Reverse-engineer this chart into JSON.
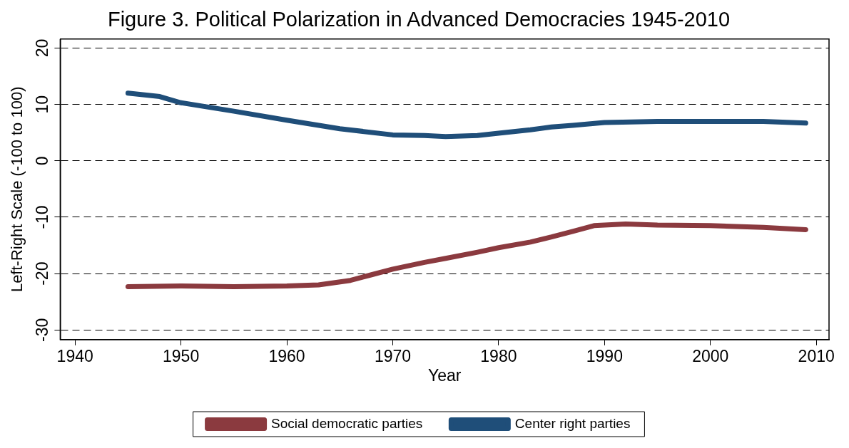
{
  "chart_data": {
    "type": "line",
    "title": "Figure 3. Political Polarization in Advanced Democracies 1945-2010",
    "xlabel": "Year",
    "ylabel": "Left-Right Scale (-100 to 100)",
    "xlim": [
      1938.6,
      2011.2
    ],
    "xticks": [
      1940,
      1950,
      1960,
      1970,
      1980,
      1990,
      2000,
      2010
    ],
    "ylim": [
      -31.7,
      21.6
    ],
    "yticks": [
      -30,
      -20,
      -10,
      0,
      10,
      20
    ],
    "grid": "y",
    "legend": "bottom",
    "marker": "none",
    "line_style": "solid",
    "series": [
      {
        "name": "Social democratic parties",
        "color": "#8b3a3f",
        "x": [
          1945,
          1950,
          1955,
          1960,
          1963,
          1966,
          1968,
          1970,
          1973,
          1975,
          1978,
          1980,
          1983,
          1985,
          1987,
          1989,
          1992,
          1995,
          2000,
          2005,
          2009
        ],
        "values": [
          -22.3,
          -22.2,
          -22.3,
          -22.2,
          -22,
          -21.2,
          -20.2,
          -19.2,
          -18,
          -17.3,
          -16.2,
          -15.4,
          -14.4,
          -13.5,
          -12.5,
          -11.5,
          -11.2,
          -11.4,
          -11.5,
          -11.8,
          -12.2
        ]
      },
      {
        "name": "Center right parties",
        "color": "#1f4e79",
        "x": [
          1945,
          1948,
          1950,
          1955,
          1960,
          1965,
          1970,
          1973,
          1975,
          1978,
          1980,
          1983,
          1985,
          1987,
          1990,
          1995,
          2000,
          2005,
          2009
        ],
        "values": [
          12,
          11.4,
          10.3,
          8.8,
          7.2,
          5.7,
          4.6,
          4.5,
          4.3,
          4.5,
          4.9,
          5.5,
          6,
          6.3,
          6.8,
          7,
          7,
          7,
          6.7
        ]
      }
    ]
  }
}
